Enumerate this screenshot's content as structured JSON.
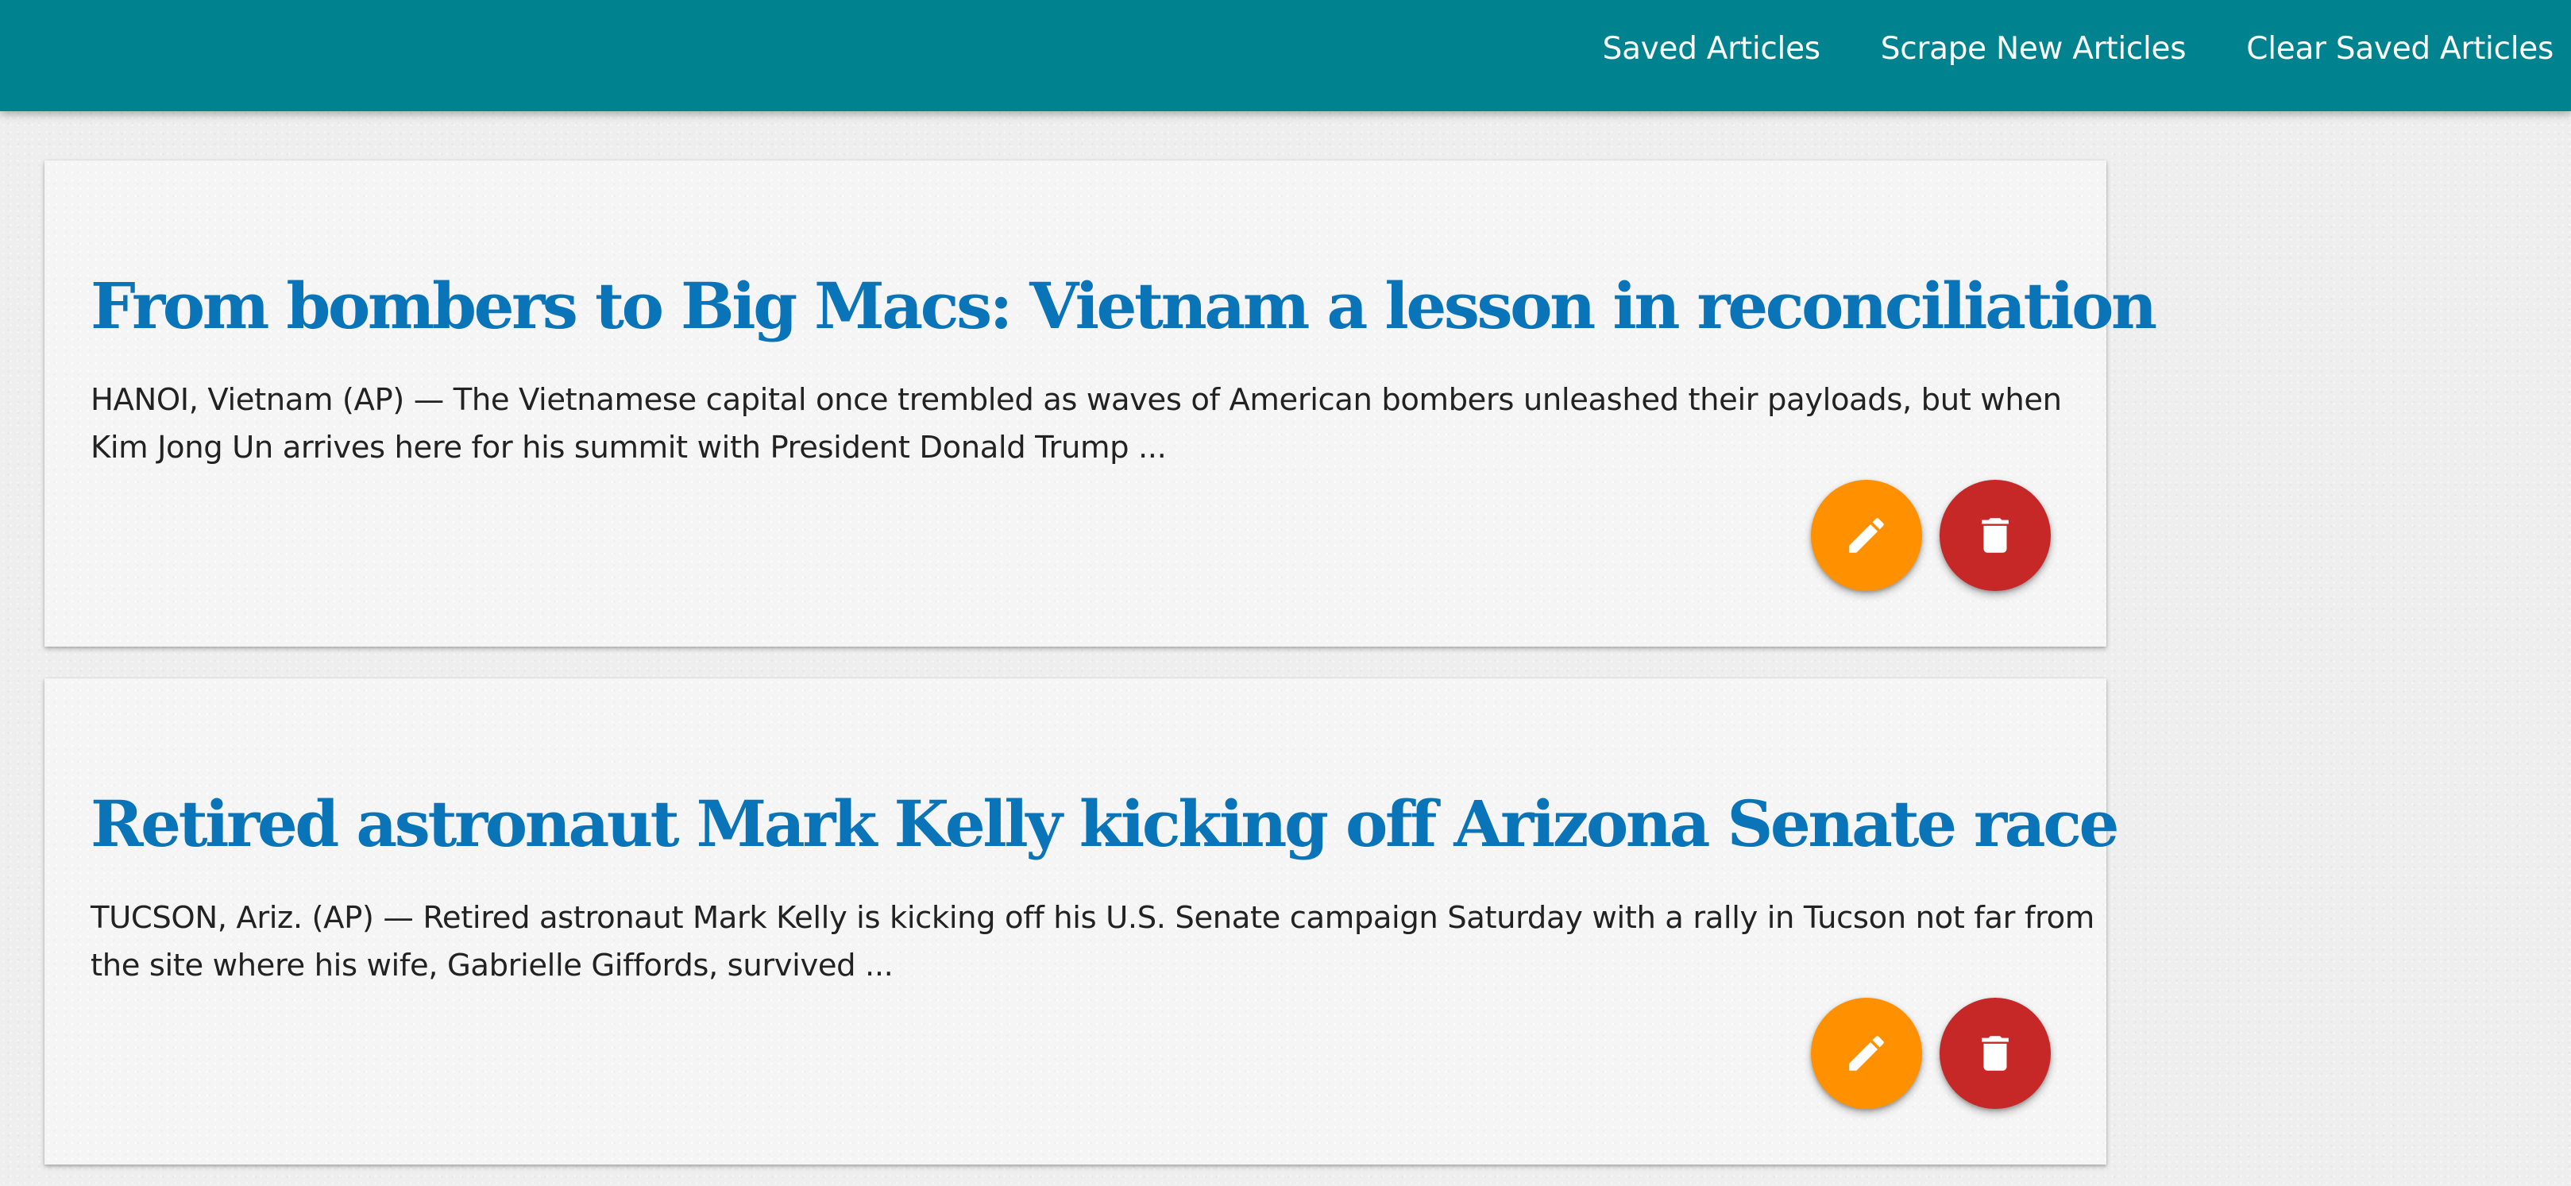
{
  "navbar": {
    "links": [
      {
        "label": "Saved Articles"
      },
      {
        "label": "Scrape New Articles"
      },
      {
        "label": "Clear Saved Articles"
      }
    ],
    "background": "#00838f"
  },
  "articles": [
    {
      "title": "From bombers to Big Macs: Vietnam a lesson in reconciliation",
      "summary": "HANOI, Vietnam (AP) — The Vietnamese capital once trembled as waves of American bombers unleashed their payloads, but when Kim Jong Un arrives here for his summit with President Donald Trump ...",
      "edit_icon": "pencil-icon",
      "delete_icon": "trash-icon"
    },
    {
      "title": "Retired astronaut Mark Kelly kicking off Arizona Senate race",
      "summary": "TUCSON, Ariz. (AP) — Retired astronaut Mark Kelly is kicking off his U.S. Senate campaign Saturday with a rally in Tucson not far from the site where his wife, Gabrielle Giffords, survived ...",
      "edit_icon": "pencil-icon",
      "delete_icon": "trash-icon"
    }
  ],
  "colors": {
    "title": "#0a74b8",
    "edit_button": "#ff9100",
    "delete_button": "#c62828"
  }
}
